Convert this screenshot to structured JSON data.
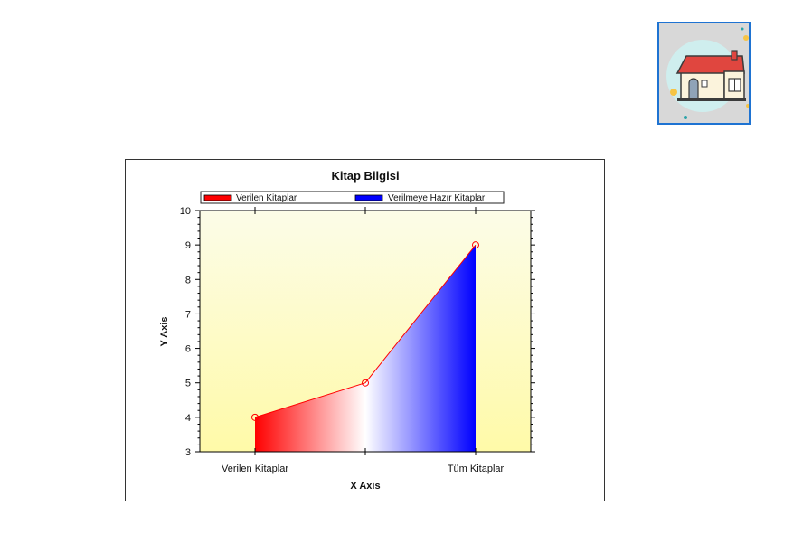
{
  "home_button": {
    "icon": "house-icon"
  },
  "chart_data": {
    "type": "area",
    "title": "Kitap Bilgisi",
    "xlabel": "X Axis",
    "ylabel": "Y Axis",
    "categories": [
      "Verilen Kitaplar",
      "",
      "Tüm Kitaplar"
    ],
    "tick_labels": [
      "Verilen Kitaplar",
      "Tüm Kitaplar"
    ],
    "values": [
      4,
      5,
      9
    ],
    "ylim": [
      3,
      10
    ],
    "yticks": [
      3,
      4,
      5,
      6,
      7,
      8,
      9,
      10
    ],
    "grid": false,
    "legend_position": "top",
    "legend": [
      {
        "label": "Verilen Kitaplar",
        "color": "#ff0000"
      },
      {
        "label": "Verilmeye Hazır Kitaplar",
        "color": "#0000ff"
      }
    ],
    "colors": {
      "line": "#ff0000",
      "fill_start": "#ff0000",
      "fill_mid": "#ffffff",
      "fill_end": "#0000ff",
      "plot_bg_top": "#fcfce8",
      "plot_bg_bottom": "#fffaa8"
    }
  }
}
